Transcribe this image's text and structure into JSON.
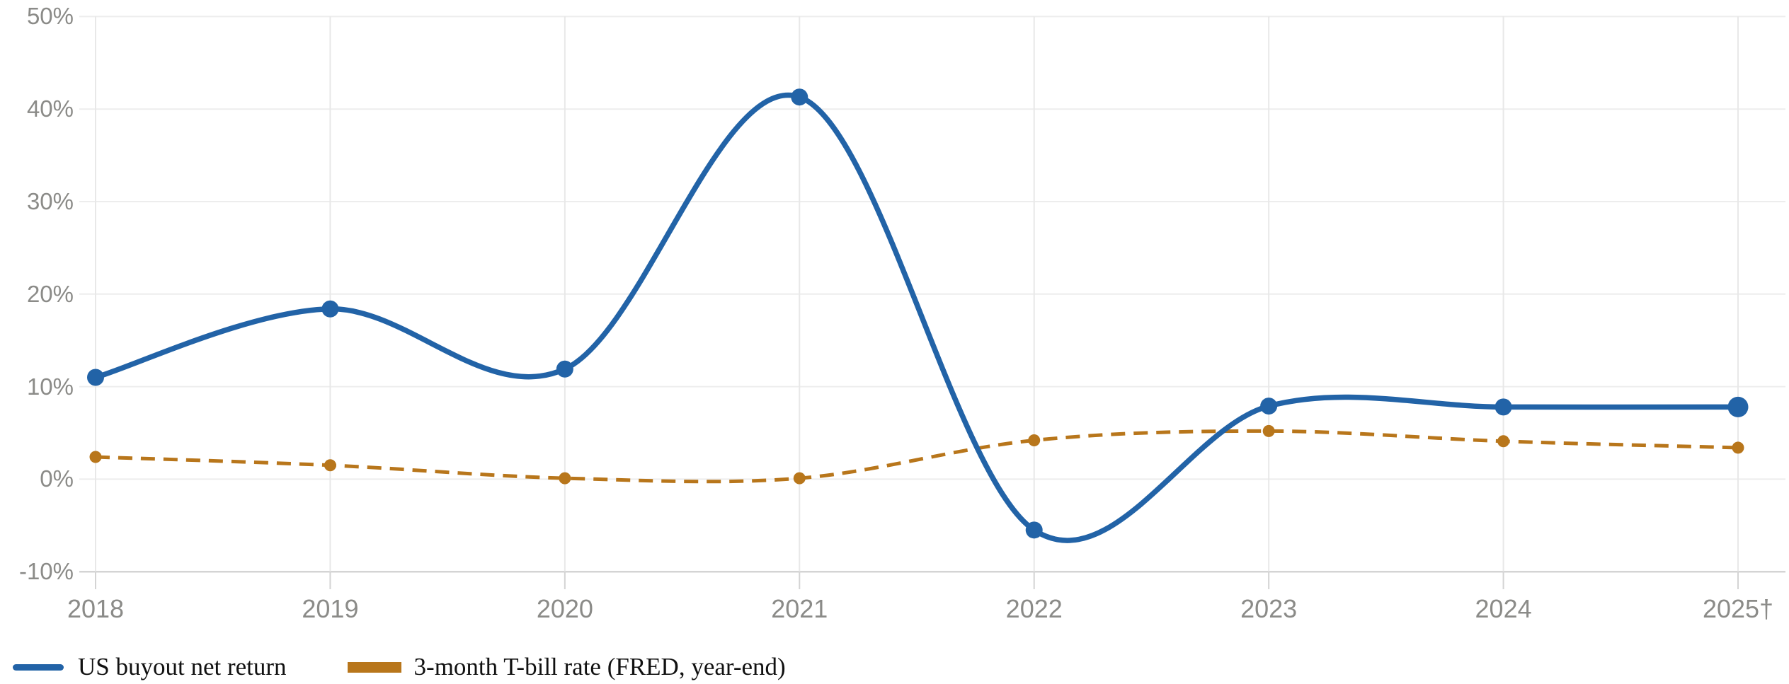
{
  "chart_data": {
    "type": "line",
    "title": "",
    "xlabel": "",
    "ylabel": "",
    "categories": [
      "2018",
      "2019",
      "2020",
      "2021",
      "2022",
      "2023",
      "2024",
      "2025†"
    ],
    "series": [
      {
        "name": "US buyout net return",
        "values": [
          11.0,
          18.4,
          11.9,
          41.3,
          -5.5,
          7.9,
          7.8,
          7.8
        ],
        "color": "#2263A7",
        "line_style": "solid",
        "smooth": true,
        "marker": "circle",
        "marker_radius": 12,
        "last_marker_radius": 14.5,
        "line_width": 7.5
      },
      {
        "name": "3-month T-bill rate (FRED, year-end)",
        "values": [
          2.4,
          1.5,
          0.1,
          0.1,
          4.2,
          5.2,
          4.1,
          3.4
        ],
        "color": "#B8761B",
        "line_style": "dashed",
        "smooth": true,
        "marker": "circle",
        "marker_radius": 8.5,
        "last_marker_radius": 8.5,
        "line_width": 5
      }
    ],
    "ylim": [
      -10,
      50
    ],
    "y_ticks": [
      {
        "value": 50,
        "label": "50%"
      },
      {
        "value": 40,
        "label": "40%"
      },
      {
        "value": 30,
        "label": "30%"
      },
      {
        "value": 20,
        "label": "20%"
      },
      {
        "value": 10,
        "label": "10%"
      },
      {
        "value": 0,
        "label": "0%"
      },
      {
        "value": -10,
        "label": "-10%"
      }
    ],
    "grid": true,
    "legend_position": "bottom-left"
  },
  "legend": {
    "items": [
      {
        "label": "US buyout net return",
        "color": "#2263A7",
        "swatch": "line"
      },
      {
        "label": "3-month T-bill rate (FRED, year-end)",
        "color": "#B8761B",
        "swatch": "rect"
      }
    ]
  },
  "colors": {
    "background": "#FFFFFF",
    "grid_horizontal": "#EDEDED",
    "grid_vertical": "#E8E8E8",
    "axis_line": "#D4D4D4",
    "tick_mark": "#D4D4D4",
    "axis_label": "#8B8B88",
    "legend_text": "#111111"
  }
}
